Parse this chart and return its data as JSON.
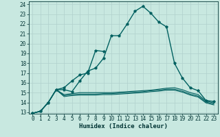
{
  "xlabel": "Humidex (Indice chaleur)",
  "xlim": [
    -0.5,
    23.5
  ],
  "ylim": [
    12.85,
    24.3
  ],
  "yticks": [
    13,
    14,
    15,
    16,
    17,
    18,
    19,
    20,
    21,
    22,
    23,
    24
  ],
  "xticks": [
    0,
    1,
    2,
    3,
    4,
    5,
    6,
    7,
    8,
    9,
    10,
    11,
    12,
    13,
    14,
    15,
    16,
    17,
    18,
    19,
    20,
    21,
    22,
    23
  ],
  "background_color": "#c8e8e0",
  "grid_color": "#b0d0cc",
  "line_color": "#006060",
  "lines": [
    [
      12.9,
      13.1,
      14.0,
      15.3,
      15.3,
      15.1,
      16.2,
      17.2,
      17.5,
      18.5,
      20.8,
      20.8,
      22.0,
      23.3,
      23.8,
      23.1,
      22.2,
      21.7,
      18.0,
      16.5,
      15.5,
      15.2,
      14.2,
      14.1
    ],
    [
      12.9,
      13.1,
      14.0,
      15.3,
      15.5,
      16.2,
      16.8,
      17.0,
      19.3,
      19.2,
      null,
      null,
      null,
      null,
      null,
      null,
      null,
      null,
      null,
      null,
      null,
      null,
      null,
      null
    ],
    [
      12.9,
      13.1,
      14.0,
      15.3,
      14.8,
      14.9,
      15.0,
      15.0,
      15.0,
      15.0,
      15.0,
      15.05,
      15.1,
      15.15,
      15.2,
      15.25,
      15.35,
      15.45,
      15.5,
      15.3,
      15.0,
      14.8,
      14.15,
      13.95
    ],
    [
      12.9,
      13.1,
      14.0,
      15.3,
      14.7,
      14.8,
      14.85,
      14.85,
      14.85,
      14.9,
      14.9,
      14.95,
      15.0,
      15.05,
      15.1,
      15.2,
      15.25,
      15.35,
      15.35,
      15.15,
      14.85,
      14.65,
      14.05,
      13.85
    ],
    [
      12.9,
      13.1,
      14.0,
      15.3,
      14.6,
      14.7,
      14.75,
      14.75,
      14.75,
      14.8,
      14.8,
      14.85,
      14.9,
      14.95,
      15.0,
      15.1,
      15.15,
      15.25,
      15.25,
      15.05,
      14.75,
      14.55,
      13.95,
      13.75
    ]
  ],
  "markers": [
    "*",
    "*",
    null,
    null,
    null
  ],
  "linewidths": [
    1.0,
    1.0,
    0.8,
    0.8,
    0.8
  ],
  "font_color": "#003333",
  "tick_fontsize": 5.5,
  "xlabel_fontsize": 6.5
}
